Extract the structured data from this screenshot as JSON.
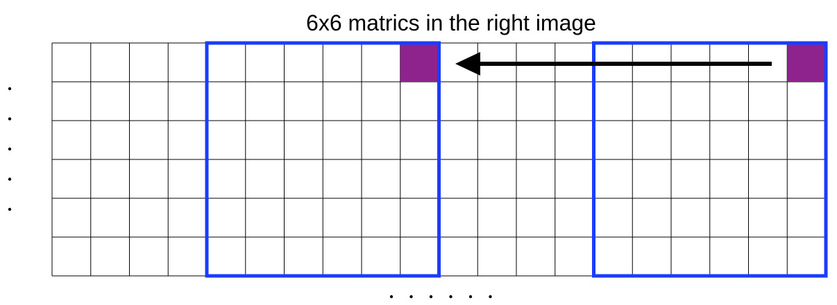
{
  "title": "6x6 matrics in the right image",
  "grid": {
    "columns": 20,
    "rows": 6,
    "line_color": "#000000"
  },
  "windows": [
    {
      "label": "left-window",
      "col_start": 4,
      "col_span": 6,
      "row_start": 0,
      "row_span": 6,
      "color": "#1a3cff"
    },
    {
      "label": "right-window",
      "col_start": 14,
      "col_span": 6,
      "row_start": 0,
      "row_span": 6,
      "color": "#1a3cff"
    }
  ],
  "highlighted_cells": [
    {
      "col": 9,
      "row": 0,
      "color": "#8e238e"
    },
    {
      "col": 19,
      "row": 0,
      "color": "#8e238e"
    }
  ],
  "arrow": {
    "direction": "left",
    "color": "#000000"
  },
  "continuation_dots": {
    "left_vertical_count": 5,
    "bottom_horizontal_count": 6
  }
}
